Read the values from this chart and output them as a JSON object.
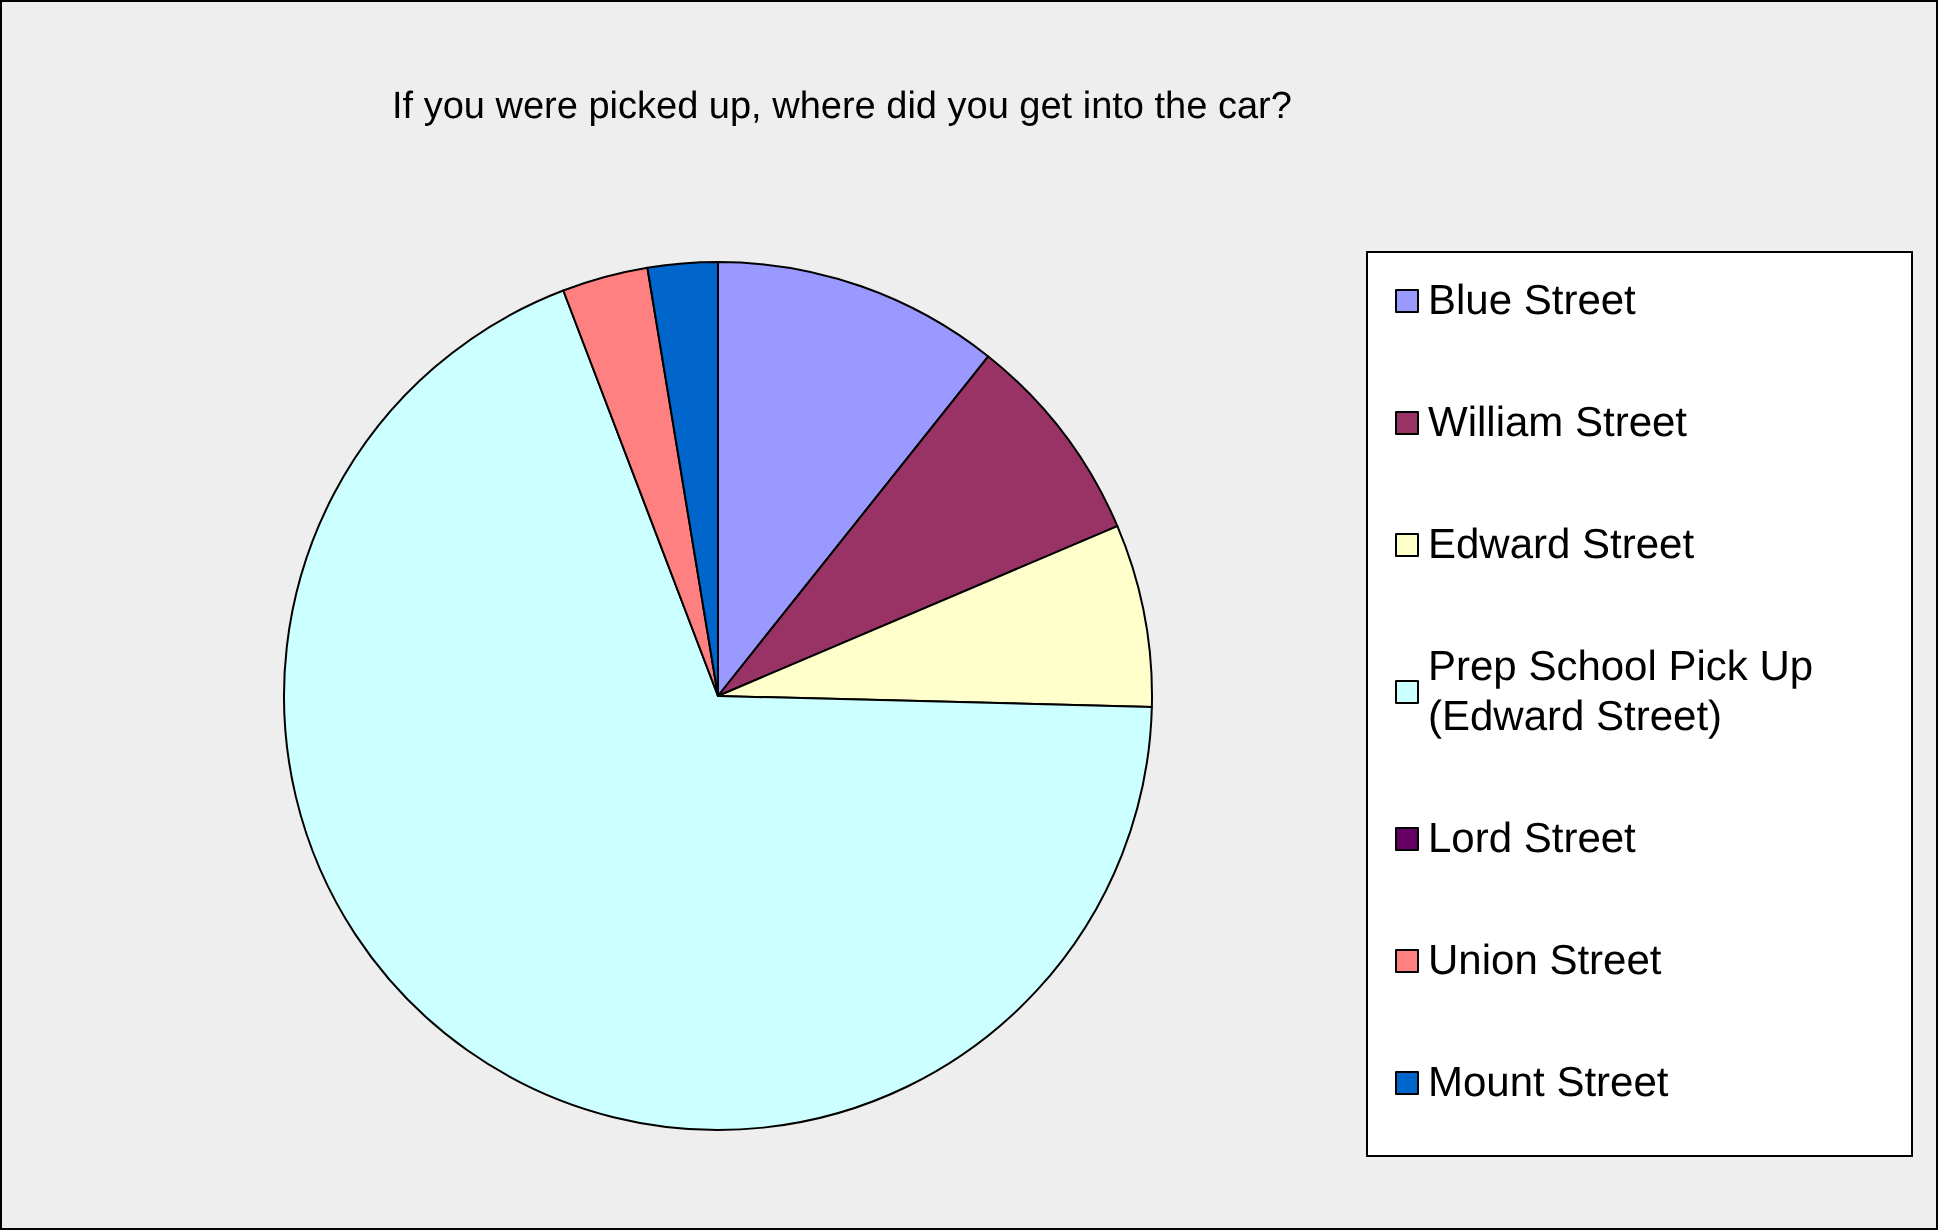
{
  "chart_data": {
    "type": "pie",
    "title": "If you were picked up, where did you get into the car?",
    "categories": [
      "Blue Street",
      "William Street",
      "Edward Street",
      "Prep School Pick Up (Edward Street)",
      "Lord Street",
      "Union Street",
      "Mount Street"
    ],
    "values": [
      10.7,
      7.9,
      6.8,
      68.8,
      0,
      3.2,
      2.6
    ],
    "colors": [
      "#9999ff",
      "#993366",
      "#ffffcc",
      "#ccffff",
      "#660066",
      "#ff8080",
      "#0066cc"
    ],
    "legend": "right"
  }
}
